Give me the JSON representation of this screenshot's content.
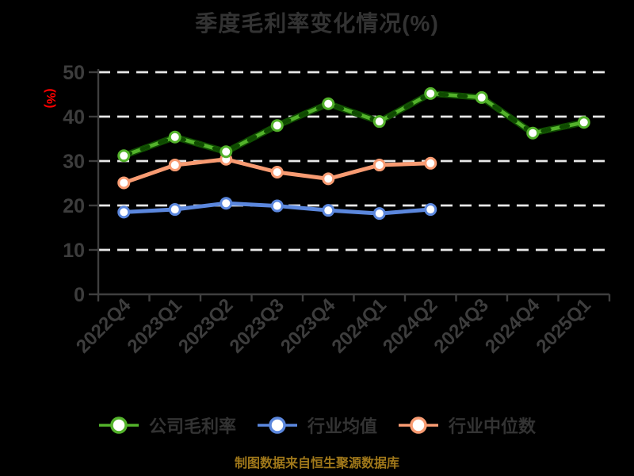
{
  "title": "季度毛利率变化情况(%)",
  "footer_note": "制图数据来自恒生聚源数据库",
  "colors": {
    "background": "#000000",
    "title_text": "#333333",
    "axis_text": "#3d3d3d",
    "axis_line": "#3f3f3f",
    "gridline": "#e8e8e8",
    "ylabel_text": "#ff0000",
    "footer_text": "#a0781a",
    "legend_text": "#333333",
    "marker_fill": "#ffffff"
  },
  "chart_data": {
    "type": "line",
    "title": "季度毛利率变化情况(%)",
    "ylabel": "(%)",
    "ylim": [
      0,
      50
    ],
    "yticks": [
      0,
      10,
      20,
      30,
      40,
      50
    ],
    "grid": "horizontal-dashed-white",
    "legend_position": "bottom",
    "marker": "circle-white-fill",
    "categories": [
      "2022Q4",
      "2023Q1",
      "2023Q2",
      "2023Q3",
      "2023Q4",
      "2024Q1",
      "2024Q2",
      "2024Q3",
      "2024Q4",
      "2025Q1"
    ],
    "series": [
      {
        "name": "公司毛利率",
        "color": "#53b22b",
        "edge_color": "#0e4a00",
        "style": "solid-with-dark-dash-overlay",
        "values": [
          31.2,
          35.4,
          32.1,
          38.0,
          42.9,
          38.9,
          45.2,
          44.3,
          36.3,
          38.7
        ]
      },
      {
        "name": "行业均值",
        "color": "#5b87dd",
        "style": "solid",
        "values": [
          18.5,
          19.1,
          20.5,
          19.9,
          18.9,
          18.2,
          19.1,
          null,
          null,
          null
        ]
      },
      {
        "name": "行业中位数",
        "color": "#f89b72",
        "style": "solid",
        "values": [
          25.1,
          29.1,
          30.4,
          27.5,
          26.0,
          29.1,
          29.5,
          null,
          null,
          null
        ]
      }
    ]
  }
}
